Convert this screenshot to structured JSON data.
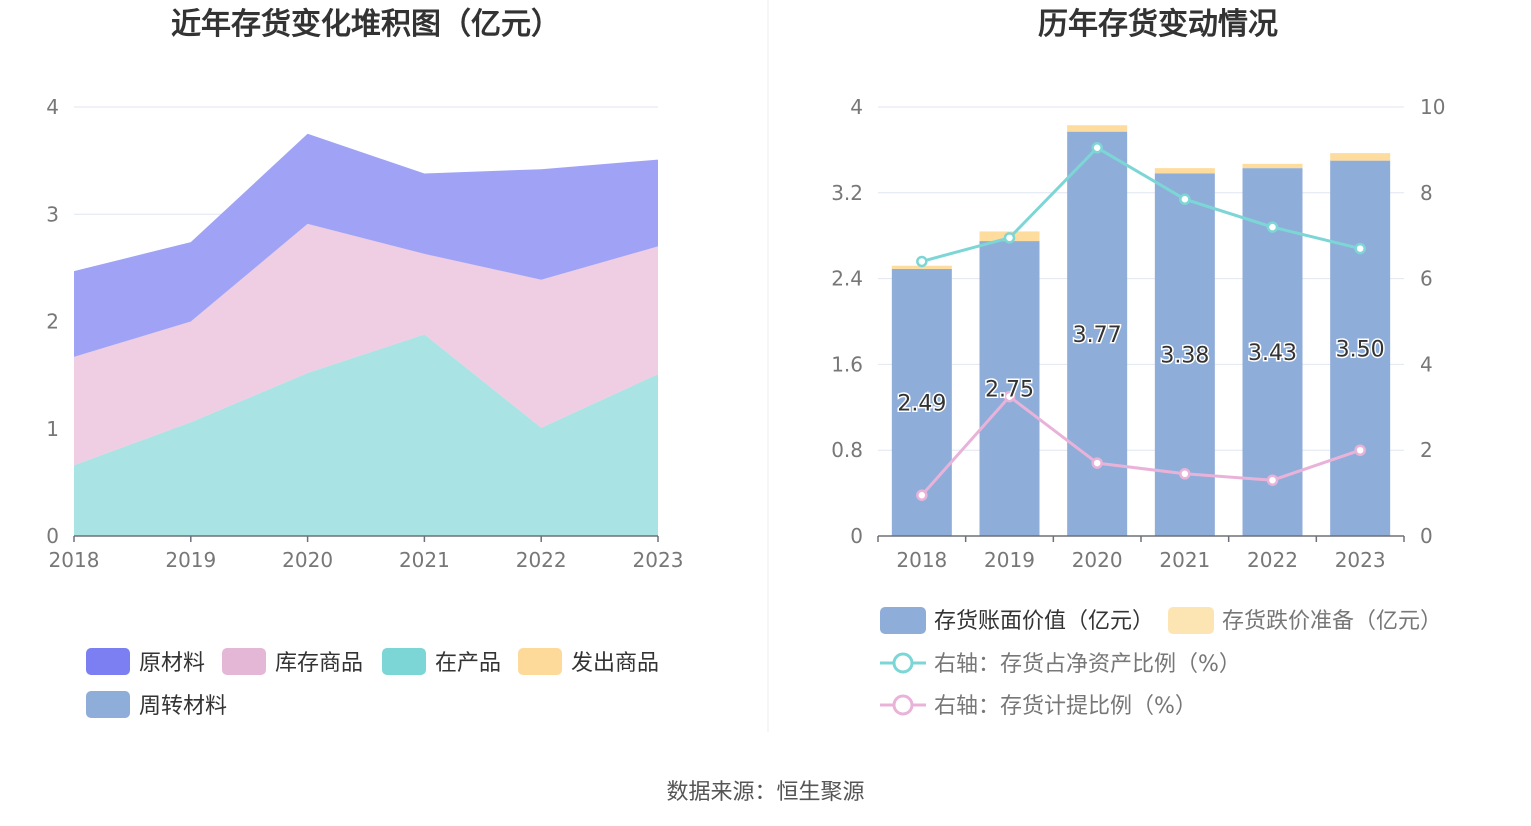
{
  "left_chart": {
    "title": "近年存货变化堆积图（亿元）",
    "legend": [
      {
        "label": "原材料",
        "color": "#7b7ff2"
      },
      {
        "label": "库存商品",
        "color": "#e4b7d6"
      },
      {
        "label": "在产品",
        "color": "#7dd6d6"
      },
      {
        "label": "发出商品",
        "color": "#fdd99a"
      },
      {
        "label": "周转材料",
        "color": "#8fadd9"
      }
    ]
  },
  "right_chart": {
    "title": "历年存货变动情况",
    "legend": [
      {
        "label": "存货账面价值（亿元）",
        "color": "#8fadd9"
      },
      {
        "label": "存货跌价准备（亿元）",
        "color": "#fde4b3"
      },
      {
        "label": "右轴：存货占净资产比例（%）",
        "color": "#7dd6d6"
      },
      {
        "label": "右轴：存货计提比例（%）",
        "color": "#e9b3d9"
      }
    ]
  },
  "source": "数据来源：恒生聚源",
  "chart_data": [
    {
      "type": "area",
      "stacked": true,
      "title": "近年存货变化堆积图（亿元）",
      "categories": [
        "2018",
        "2019",
        "2020",
        "2021",
        "2022",
        "2023"
      ],
      "ylim": [
        0,
        4
      ],
      "yticks": [
        "0",
        "1",
        "2",
        "3",
        "4"
      ],
      "grid": true,
      "legend_position": "bottom",
      "series": [
        {
          "name": "在产品",
          "color": "#a9e3e3",
          "values": [
            0.66,
            1.06,
            1.52,
            1.88,
            1.01,
            1.51
          ]
        },
        {
          "name": "库存商品",
          "color": "#efcde2",
          "values": [
            1.01,
            0.94,
            1.39,
            0.75,
            1.38,
            1.19
          ]
        },
        {
          "name": "原材料",
          "color": "#a0a3f5",
          "values": [
            0.8,
            0.74,
            0.84,
            0.75,
            1.03,
            0.81
          ]
        },
        {
          "name": "发出商品",
          "color": "#fdd99a",
          "values": [
            0,
            0,
            0,
            0,
            0,
            0
          ]
        },
        {
          "name": "周转材料",
          "color": "#8fadd9",
          "values": [
            0,
            0,
            0,
            0,
            0,
            0
          ]
        }
      ]
    },
    {
      "type": "bar",
      "stacked": true,
      "title": "历年存货变动情况",
      "categories": [
        "2018",
        "2019",
        "2020",
        "2021",
        "2022",
        "2023"
      ],
      "ylim": [
        0,
        4
      ],
      "yticks": [
        "0",
        "0.8",
        "1.6",
        "2.4",
        "3.2",
        "4"
      ],
      "y2lim": [
        0,
        10
      ],
      "y2ticks": [
        "0",
        "2",
        "4",
        "6",
        "8",
        "10"
      ],
      "grid": true,
      "legend_position": "bottom",
      "series": [
        {
          "name": "存货账面价值（亿元）",
          "axis": "left",
          "type": "bar",
          "color": "#8fadd9",
          "values": [
            2.49,
            2.75,
            3.77,
            3.38,
            3.43,
            3.5
          ],
          "labels": [
            "2.49",
            "2.75",
            "3.77",
            "3.38",
            "3.43",
            "3.50"
          ]
        },
        {
          "name": "存货跌价准备（亿元）",
          "axis": "left",
          "type": "bar",
          "color": "#fddc9e",
          "values": [
            0.03,
            0.09,
            0.06,
            0.05,
            0.04,
            0.07
          ]
        },
        {
          "name": "右轴：存货占净资产比例（%）",
          "axis": "right",
          "type": "line",
          "color": "#7dd6d6",
          "values": [
            6.4,
            6.95,
            9.05,
            7.85,
            7.2,
            6.7
          ]
        },
        {
          "name": "右轴：存货计提比例（%）",
          "axis": "right",
          "type": "line",
          "color": "#e9b3d9",
          "values": [
            0.95,
            3.25,
            1.7,
            1.45,
            1.3,
            2.0
          ]
        }
      ]
    }
  ]
}
